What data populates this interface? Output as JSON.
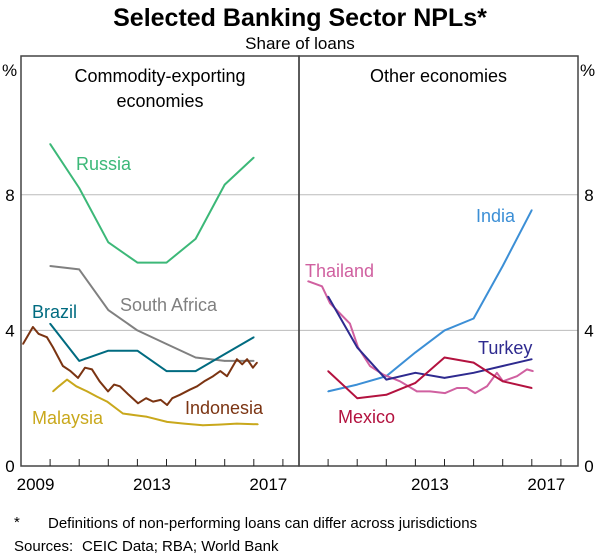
{
  "chart_data": {
    "title": "Selected Banking Sector NPLs*",
    "subtitle": "Share of loans",
    "y_unit_label": "%",
    "ylim": [
      0,
      12
    ],
    "y_ticks": [
      0,
      4,
      8
    ],
    "x_domain": [
      2009,
      2018.55
    ],
    "grid": true,
    "footnote": "Definitions of non-performing loans can differ across jurisdictions",
    "footnote_marker": "*",
    "sources_label": "Sources:",
    "sources": "CEIC Data; RBA; World Bank",
    "panels": [
      {
        "title": [
          "Commodity-exporting",
          "economies"
        ],
        "x_tick_labels": [
          "2009",
          "2013",
          "2017"
        ],
        "type": "line",
        "series": [
          {
            "name": "Russia",
            "color": "#3cb878",
            "x": [
              2010,
              2011,
              2012,
              2013,
              2014,
              2015,
              2016,
              2017
            ],
            "y": [
              9.5,
              8.2,
              6.6,
              6.0,
              6.0,
              6.7,
              8.3,
              9.1
            ]
          },
          {
            "name": "South Africa",
            "color": "#808080",
            "x": [
              2010,
              2011,
              2012,
              2013,
              2014,
              2015,
              2016,
              2017
            ],
            "y": [
              5.9,
              5.8,
              4.6,
              4.0,
              3.6,
              3.2,
              3.1,
              3.1
            ]
          },
          {
            "name": "Brazil",
            "color": "#006b80",
            "x": [
              2010,
              2011,
              2012,
              2013,
              2014,
              2015,
              2016,
              2017
            ],
            "y": [
              4.2,
              3.1,
              3.4,
              3.4,
              2.8,
              2.8,
              3.3,
              3.8
            ]
          },
          {
            "name": "Indonesia",
            "color": "#7b3412",
            "x": [
              2009.07,
              2009.41,
              2009.6,
              2009.89,
              2010.1,
              2010.44,
              2010.7,
              2010.96,
              2011.2,
              2011.44,
              2011.7,
              2011.99,
              2012.2,
              2012.4,
              2012.7,
              2013.02,
              2013.3,
              2013.54,
              2013.8,
              2014.02,
              2014.2,
              2014.46,
              2014.8,
              2015.05,
              2015.3,
              2015.6,
              2015.85,
              2016.08,
              2016.42,
              2016.6,
              2016.77,
              2016.97,
              2017.11
            ],
            "y": [
              3.6,
              4.1,
              3.9,
              3.8,
              3.5,
              2.95,
              2.8,
              2.6,
              2.9,
              2.85,
              2.5,
              2.2,
              2.4,
              2.35,
              2.1,
              1.85,
              2.0,
              1.9,
              1.95,
              1.8,
              2.0,
              2.1,
              2.25,
              2.35,
              2.5,
              2.65,
              2.8,
              2.65,
              3.15,
              3.0,
              3.15,
              2.9,
              3.05
            ]
          },
          {
            "name": "Malaysia",
            "color": "#c9a81c",
            "x": [
              2010.1,
              2010.3,
              2010.58,
              2010.9,
              2011.27,
              2011.6,
              2011.96,
              2012.5,
              2012.9,
              2013.33,
              2014.02,
              2014.6,
              2015.25,
              2015.8,
              2016.42,
              2017.14
            ],
            "y": [
              2.2,
              2.35,
              2.55,
              2.35,
              2.2,
              2.05,
              1.9,
              1.55,
              1.5,
              1.45,
              1.3,
              1.25,
              1.2,
              1.22,
              1.25,
              1.23
            ]
          }
        ]
      },
      {
        "title": [
          "Other economies"
        ],
        "x_tick_labels": [
          "2013",
          "2017"
        ],
        "type": "line",
        "series": [
          {
            "name": "India",
            "color": "#3c8fd6",
            "x": [
              2010,
              2011,
              2012,
              2013,
              2014,
              2015,
              2016,
              2017
            ],
            "y": [
              2.2,
              2.4,
              2.65,
              3.35,
              4.0,
              4.35,
              5.9,
              7.55
            ]
          },
          {
            "name": "Thailand",
            "color": "#d060a0",
            "x": [
              2009.31,
              2009.79,
              2010.07,
              2010.41,
              2010.75,
              2011.03,
              2011.44,
              2011.89,
              2012.47,
              2013.05,
              2013.5,
              2014.02,
              2014.43,
              2014.77,
              2015.05,
              2015.46,
              2015.8,
              2016.01,
              2016.49,
              2016.83,
              2017.04
            ],
            "y": [
              5.45,
              5.3,
              4.8,
              4.5,
              4.2,
              3.5,
              2.95,
              2.7,
              2.5,
              2.2,
              2.2,
              2.15,
              2.3,
              2.3,
              2.15,
              2.35,
              2.75,
              2.5,
              2.65,
              2.85,
              2.8
            ]
          },
          {
            "name": "Turkey",
            "color": "#2e2a8f",
            "x": [
              2010,
              2011,
              2012,
              2013,
              2014,
              2015,
              2016,
              2017
            ],
            "y": [
              5.0,
              3.5,
              2.55,
              2.75,
              2.6,
              2.75,
              2.95,
              3.15
            ]
          },
          {
            "name": "Mexico",
            "color": "#b3123f",
            "x": [
              2010,
              2011,
              2012,
              2013,
              2014,
              2015,
              2016,
              2017
            ],
            "y": [
              2.8,
              2.0,
              2.1,
              2.45,
              3.2,
              3.05,
              2.5,
              2.3
            ]
          }
        ]
      }
    ]
  }
}
